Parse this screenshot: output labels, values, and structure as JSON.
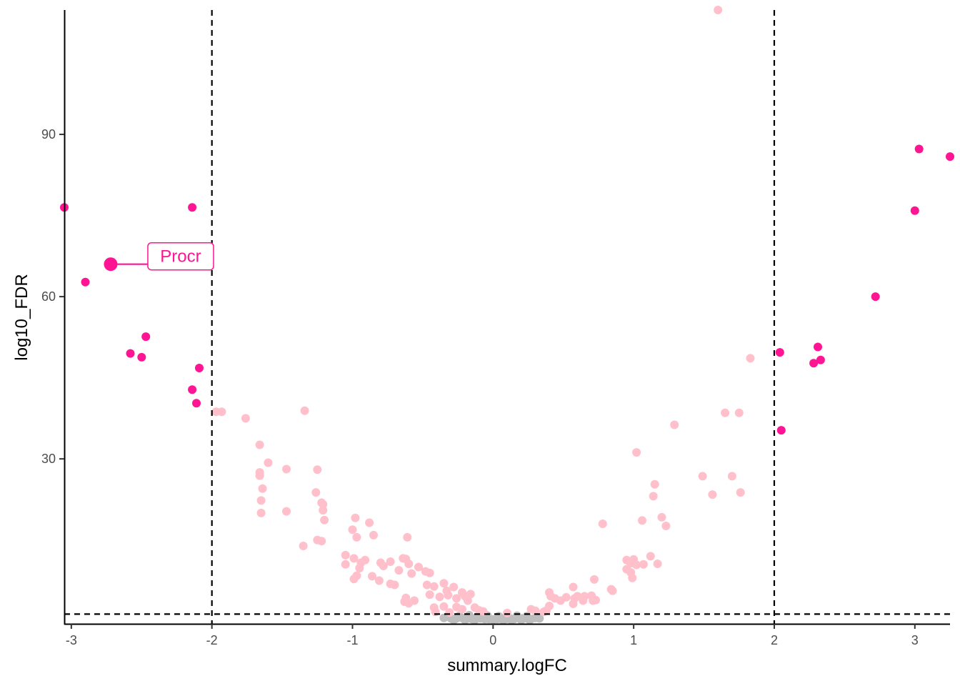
{
  "chart_data": {
    "type": "scatter",
    "title": "",
    "xlabel": "summary.logFC",
    "ylabel": "log10_FDR",
    "xlim": [
      -3.05,
      3.25
    ],
    "ylim": [
      -0.5,
      113
    ],
    "xticks": [
      -3,
      -2,
      -1,
      0,
      1,
      2,
      3
    ],
    "yticks": [
      30,
      60,
      90
    ],
    "xtick_labels": [
      "-3",
      "-2",
      "-1",
      "0",
      "1",
      "2",
      "3"
    ],
    "ytick_labels": [
      "30",
      "60",
      "90"
    ],
    "grid": false,
    "legend": "none",
    "reference_lines": {
      "vertical": [
        -2,
        2
      ],
      "horizontal": [
        1.3
      ],
      "style": "dashed"
    },
    "colors": {
      "significant": "#ff1493",
      "moderate": "#ffc0cb",
      "not_significant": "#bebebe",
      "axis": "#000000"
    },
    "series": [
      {
        "color": "#ff1493",
        "points": [
          [
            -3.05,
            76.5
          ],
          [
            -2.9,
            62.7
          ],
          [
            -2.58,
            49.5
          ],
          [
            -2.5,
            48.8
          ],
          [
            -2.47,
            52.6
          ],
          [
            -2.14,
            76.5
          ],
          [
            -2.14,
            42.8
          ],
          [
            -2.11,
            40.3
          ],
          [
            -2.09,
            46.8
          ],
          [
            2.04,
            49.7
          ],
          [
            2.05,
            35.3
          ],
          [
            2.28,
            47.7
          ],
          [
            2.31,
            50.7
          ],
          [
            2.33,
            48.3
          ],
          [
            2.72,
            60.0
          ],
          [
            3.0,
            75.9
          ],
          [
            3.03,
            87.3
          ],
          [
            3.25,
            85.9
          ]
        ]
      },
      {
        "color": "#ffc0cb",
        "points": [
          [
            1.6,
            113.0
          ],
          [
            1.83,
            48.6
          ],
          [
            -1.97,
            38.7
          ],
          [
            -1.93,
            38.7
          ],
          [
            -1.76,
            37.5
          ],
          [
            -1.34,
            38.9
          ],
          [
            1.29,
            36.3
          ],
          [
            1.65,
            38.5
          ],
          [
            1.75,
            38.5
          ],
          [
            -1.66,
            32.6
          ],
          [
            1.02,
            31.2
          ],
          [
            -1.6,
            29.3
          ],
          [
            -1.66,
            27.5
          ],
          [
            -1.66,
            26.9
          ],
          [
            -1.47,
            28.1
          ],
          [
            -1.25,
            28.0
          ],
          [
            1.49,
            26.8
          ],
          [
            1.7,
            26.8
          ],
          [
            1.15,
            25.3
          ],
          [
            -1.64,
            24.5
          ],
          [
            -1.26,
            23.8
          ],
          [
            1.76,
            23.8
          ],
          [
            1.56,
            23.4
          ],
          [
            1.14,
            23.1
          ],
          [
            -1.65,
            22.3
          ],
          [
            -1.22,
            21.9
          ],
          [
            -1.21,
            21.6
          ],
          [
            -1.21,
            20.5
          ],
          [
            -1.65,
            20.0
          ],
          [
            -1.47,
            20.3
          ],
          [
            -0.98,
            19.1
          ],
          [
            1.2,
            19.2
          ],
          [
            -1.2,
            18.7
          ],
          [
            -0.88,
            18.2
          ],
          [
            1.06,
            18.6
          ],
          [
            1.23,
            17.6
          ],
          [
            0.78,
            18.0
          ],
          [
            -1.0,
            16.9
          ],
          [
            -0.85,
            15.9
          ],
          [
            -0.97,
            15.5
          ],
          [
            -1.25,
            15.0
          ],
          [
            -1.22,
            14.8
          ],
          [
            -0.61,
            15.5
          ],
          [
            -1.35,
            13.9
          ],
          [
            -1.05,
            12.2
          ],
          [
            -0.99,
            11.6
          ],
          [
            -0.94,
            10.8
          ],
          [
            -0.91,
            11.3
          ],
          [
            -1.05,
            10.5
          ],
          [
            -0.95,
            9.8
          ],
          [
            -0.8,
            10.8
          ],
          [
            -0.78,
            10.2
          ],
          [
            -0.73,
            11.0
          ],
          [
            -0.64,
            11.6
          ],
          [
            -0.62,
            11.5
          ],
          [
            -0.6,
            10.6
          ],
          [
            -0.67,
            9.4
          ],
          [
            -0.58,
            8.8
          ],
          [
            -0.53,
            10.0
          ],
          [
            -0.48,
            9.2
          ],
          [
            -0.45,
            8.9
          ],
          [
            -0.86,
            8.3
          ],
          [
            -0.81,
            7.5
          ],
          [
            -0.73,
            6.9
          ],
          [
            -0.7,
            6.7
          ],
          [
            -0.99,
            7.8
          ],
          [
            -0.97,
            8.4
          ],
          [
            -0.47,
            6.7
          ],
          [
            -0.42,
            6.4
          ],
          [
            -0.35,
            7.0
          ],
          [
            -0.28,
            6.3
          ],
          [
            -0.33,
            5.6
          ],
          [
            -0.22,
            5.3
          ],
          [
            -0.16,
            5.0
          ],
          [
            -0.45,
            4.9
          ],
          [
            -0.38,
            4.5
          ],
          [
            -0.32,
            4.8
          ],
          [
            -0.62,
            4.3
          ],
          [
            -0.63,
            3.6
          ],
          [
            -0.6,
            3.3
          ],
          [
            -0.56,
            3.8
          ],
          [
            -0.42,
            2.5
          ],
          [
            -0.35,
            2.7
          ],
          [
            -0.26,
            2.6
          ],
          [
            -0.22,
            2.2
          ],
          [
            -0.18,
            3.8
          ],
          [
            -0.2,
            4.6
          ],
          [
            -0.26,
            4.2
          ],
          [
            -0.13,
            2.5
          ],
          [
            -0.1,
            2.0
          ],
          [
            -0.07,
            1.8
          ],
          [
            -0.41,
            1.7
          ],
          [
            -0.31,
            1.6
          ],
          [
            0.95,
            11.3
          ],
          [
            0.98,
            10.7
          ],
          [
            1.0,
            11.4
          ],
          [
            1.02,
            10.4
          ],
          [
            0.95,
            9.6
          ],
          [
            0.98,
            9.0
          ],
          [
            0.99,
            8.0
          ],
          [
            1.07,
            10.5
          ],
          [
            1.12,
            12.0
          ],
          [
            1.17,
            10.6
          ],
          [
            0.57,
            6.3
          ],
          [
            0.72,
            7.7
          ],
          [
            0.84,
            5.9
          ],
          [
            0.85,
            5.6
          ],
          [
            0.4,
            5.3
          ],
          [
            0.41,
            4.6
          ],
          [
            0.44,
            4.2
          ],
          [
            0.48,
            3.8
          ],
          [
            0.52,
            4.4
          ],
          [
            0.58,
            4.2
          ],
          [
            0.6,
            4.6
          ],
          [
            0.57,
            3.2
          ],
          [
            0.65,
            4.6
          ],
          [
            0.7,
            4.7
          ],
          [
            0.64,
            3.8
          ],
          [
            0.71,
            3.8
          ],
          [
            0.73,
            3.9
          ],
          [
            0.4,
            2.8
          ],
          [
            0.38,
            2.0
          ],
          [
            0.36,
            1.7
          ],
          [
            0.3,
            1.9
          ],
          [
            0.27,
            2.2
          ],
          [
            0.1,
            1.5
          ]
        ]
      },
      {
        "color": "#bebebe",
        "points": [
          [
            -0.35,
            0.6
          ],
          [
            -0.3,
            0.5
          ],
          [
            -0.26,
            0.5
          ],
          [
            -0.22,
            0.6
          ],
          [
            -0.18,
            0.5
          ],
          [
            -0.15,
            0.4
          ],
          [
            -0.12,
            0.6
          ],
          [
            -0.09,
            0.5
          ],
          [
            -0.06,
            0.4
          ],
          [
            -0.03,
            0.4
          ],
          [
            0.0,
            0.3
          ],
          [
            0.03,
            0.4
          ],
          [
            0.06,
            0.5
          ],
          [
            0.09,
            0.4
          ],
          [
            0.12,
            0.5
          ],
          [
            0.15,
            0.4
          ],
          [
            0.18,
            0.6
          ],
          [
            0.21,
            0.5
          ],
          [
            0.24,
            0.5
          ],
          [
            0.27,
            0.4
          ],
          [
            0.3,
            0.6
          ],
          [
            0.33,
            0.5
          ],
          [
            -0.32,
            0.9
          ],
          [
            -0.24,
            1.0
          ],
          [
            -0.17,
            1.1
          ],
          [
            -0.1,
            0.9
          ],
          [
            -0.04,
            1.0
          ],
          [
            0.04,
            0.9
          ],
          [
            0.1,
            1.0
          ],
          [
            0.17,
            1.0
          ],
          [
            0.24,
            0.9
          ],
          [
            -0.28,
            0.2
          ],
          [
            -0.2,
            0.2
          ],
          [
            -0.13,
            0.2
          ],
          [
            0.07,
            0.2
          ],
          [
            0.13,
            0.2
          ],
          [
            0.2,
            0.2
          ],
          [
            0.26,
            0.2
          ]
        ]
      }
    ],
    "annotations": [
      {
        "label": "Procr",
        "x": -2.72,
        "y": 66.0,
        "color": "#ff1493"
      }
    ]
  }
}
